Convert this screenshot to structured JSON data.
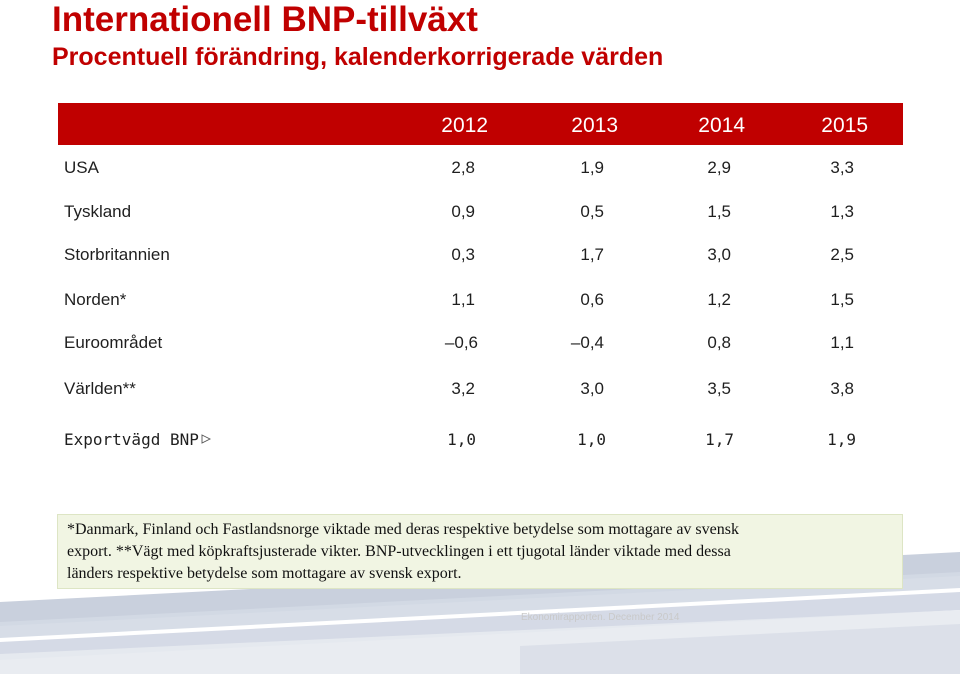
{
  "title": "Internationell BNP-tillväxt",
  "subtitle": "Procentuell förändring,  kalenderkorrigerade värden",
  "colors": {
    "accent": "#c00000",
    "footnote_bg": "#f1f5e3",
    "decoration": "#aab4c8"
  },
  "table": {
    "years": [
      "2012",
      "2013",
      "2014",
      "2015"
    ],
    "rows": [
      {
        "label": "USA",
        "values": [
          "2,8",
          "1,9",
          "2,9",
          "3,3"
        ]
      },
      {
        "label": "Tyskland",
        "values": [
          "0,9",
          "0,5",
          "1,5",
          "1,3"
        ]
      },
      {
        "label": "Storbritannien",
        "values": [
          "0,3",
          "1,7",
          "3,0",
          "2,5"
        ]
      },
      {
        "label": "Norden*",
        "values": [
          "1,1",
          "0,6",
          "1,2",
          "1,5"
        ]
      },
      {
        "label": "Euroområdet",
        "values": [
          "–0,6",
          "–0,4",
          "0,8",
          "1,1"
        ]
      },
      {
        "label": "Världen**",
        "values": [
          "3,2",
          "3,0",
          "3,5",
          "3,8"
        ]
      },
      {
        "label": "Exportvägd BNP",
        "values": [
          "1,0",
          "1,0",
          "1,7",
          "1,9"
        ]
      }
    ]
  },
  "footnote": {
    "line1": "*Danmark, Finland och Fastlandsnorge viktade med deras respektive betydelse som mottagare av svensk",
    "line2": "export.   **Vägt med köpkraftsjusterade vikter.    BNP-utvecklingen i ett tjugotal länder viktade med dessa",
    "line3": "länders respektive betydelse som mottagare av svensk export."
  },
  "footer": "Ekonomirapporten. December 2014"
}
